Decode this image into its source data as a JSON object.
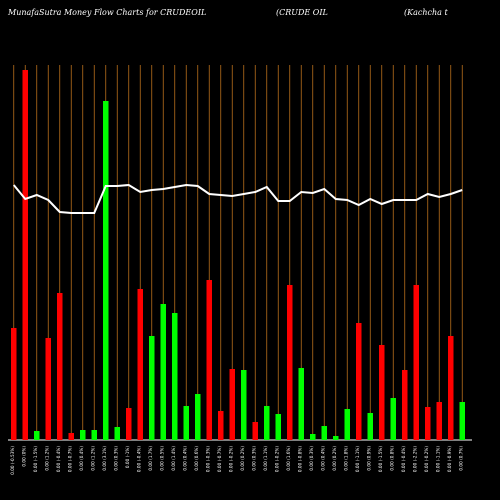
{
  "header": {
    "left": "MunafaSutra  Money Flow  Charts for CRUDEOIL",
    "middle": "(CRUDE OIL",
    "right": "(Kachcha  t"
  },
  "chart_data": {
    "type": "bar",
    "grid": true,
    "bar_color_up": "#00ff00",
    "bar_color_down": "#ff0000",
    "line_color": "#ffffff",
    "grid_color": "#b8701c",
    "categories": [
      "0.00 (-0.53%)",
      "0.00 (0%)",
      "0.00 (-1.5%)",
      "0.00 (1.2%)",
      "0.00 (-0.4%)",
      "0.00 (-0.7%)",
      "0.00 (0.4%)",
      "0.00 (1.2%)",
      "0.00 (3.1%)",
      "0.00 (0.3%)",
      "0.00 (-1%)",
      "0.00 (-0.4%)",
      "0.00 (1.7%)",
      "0.00 (0.5%)",
      "0.00 (1.4%)",
      "0.00 (0.4%)",
      "0.00 (0.6%)",
      "0.00 (-0.3%)",
      "0.00 (-0.7%)",
      "0.00 (-0.2%)",
      "0.00 (0.2%)",
      "0.00 (0.3%)",
      "0.00 (1.1%)",
      "0.00 (-0.2%)",
      "0.00 (1.6%)",
      "0.00 (-0.8%)",
      "0.00 (0.3%)",
      "0.00 (0.4%)",
      "0.00 (0.2%)",
      "0.00 (1.8%)",
      "0.00 (-1.1%)",
      "0.00 (0.9%)",
      "0.00 (-1.5%)",
      "0.00 (0.8%)",
      "0.00 (-0.4%)",
      "0.00 (-2.2%)",
      "0.00 (-0.2%)",
      "0.00 (-1.1%)",
      "0.00 (-0.9%)",
      "0.00 (0.7%)"
    ],
    "values": [
      112,
      370,
      9,
      102,
      147,
      7,
      10,
      10,
      339,
      13,
      32,
      151,
      104,
      136,
      127,
      34,
      46,
      160,
      29,
      71,
      70,
      18,
      34,
      26,
      155,
      72,
      6,
      14,
      4,
      31,
      117,
      27,
      95,
      42,
      70,
      155,
      33,
      38,
      104,
      38
    ],
    "directions": [
      "down",
      "down",
      "up",
      "down",
      "down",
      "down",
      "up",
      "up",
      "up",
      "up",
      "down",
      "down",
      "up",
      "up",
      "up",
      "up",
      "up",
      "down",
      "down",
      "down",
      "up",
      "down",
      "up",
      "up",
      "down",
      "up",
      "up",
      "up",
      "up",
      "up",
      "down",
      "up",
      "down",
      "up",
      "down",
      "down",
      "down",
      "down",
      "down",
      "up"
    ],
    "line": [
      255,
      241,
      245,
      240,
      228,
      227,
      227,
      227,
      254,
      254,
      255,
      248,
      250,
      251,
      253,
      255,
      254,
      246,
      245,
      244,
      246,
      248,
      253,
      239,
      239,
      248,
      247,
      251,
      241,
      240,
      235,
      241,
      236,
      240,
      240,
      240,
      246,
      243,
      246,
      250
    ],
    "ylim": [
      0,
      375
    ]
  }
}
